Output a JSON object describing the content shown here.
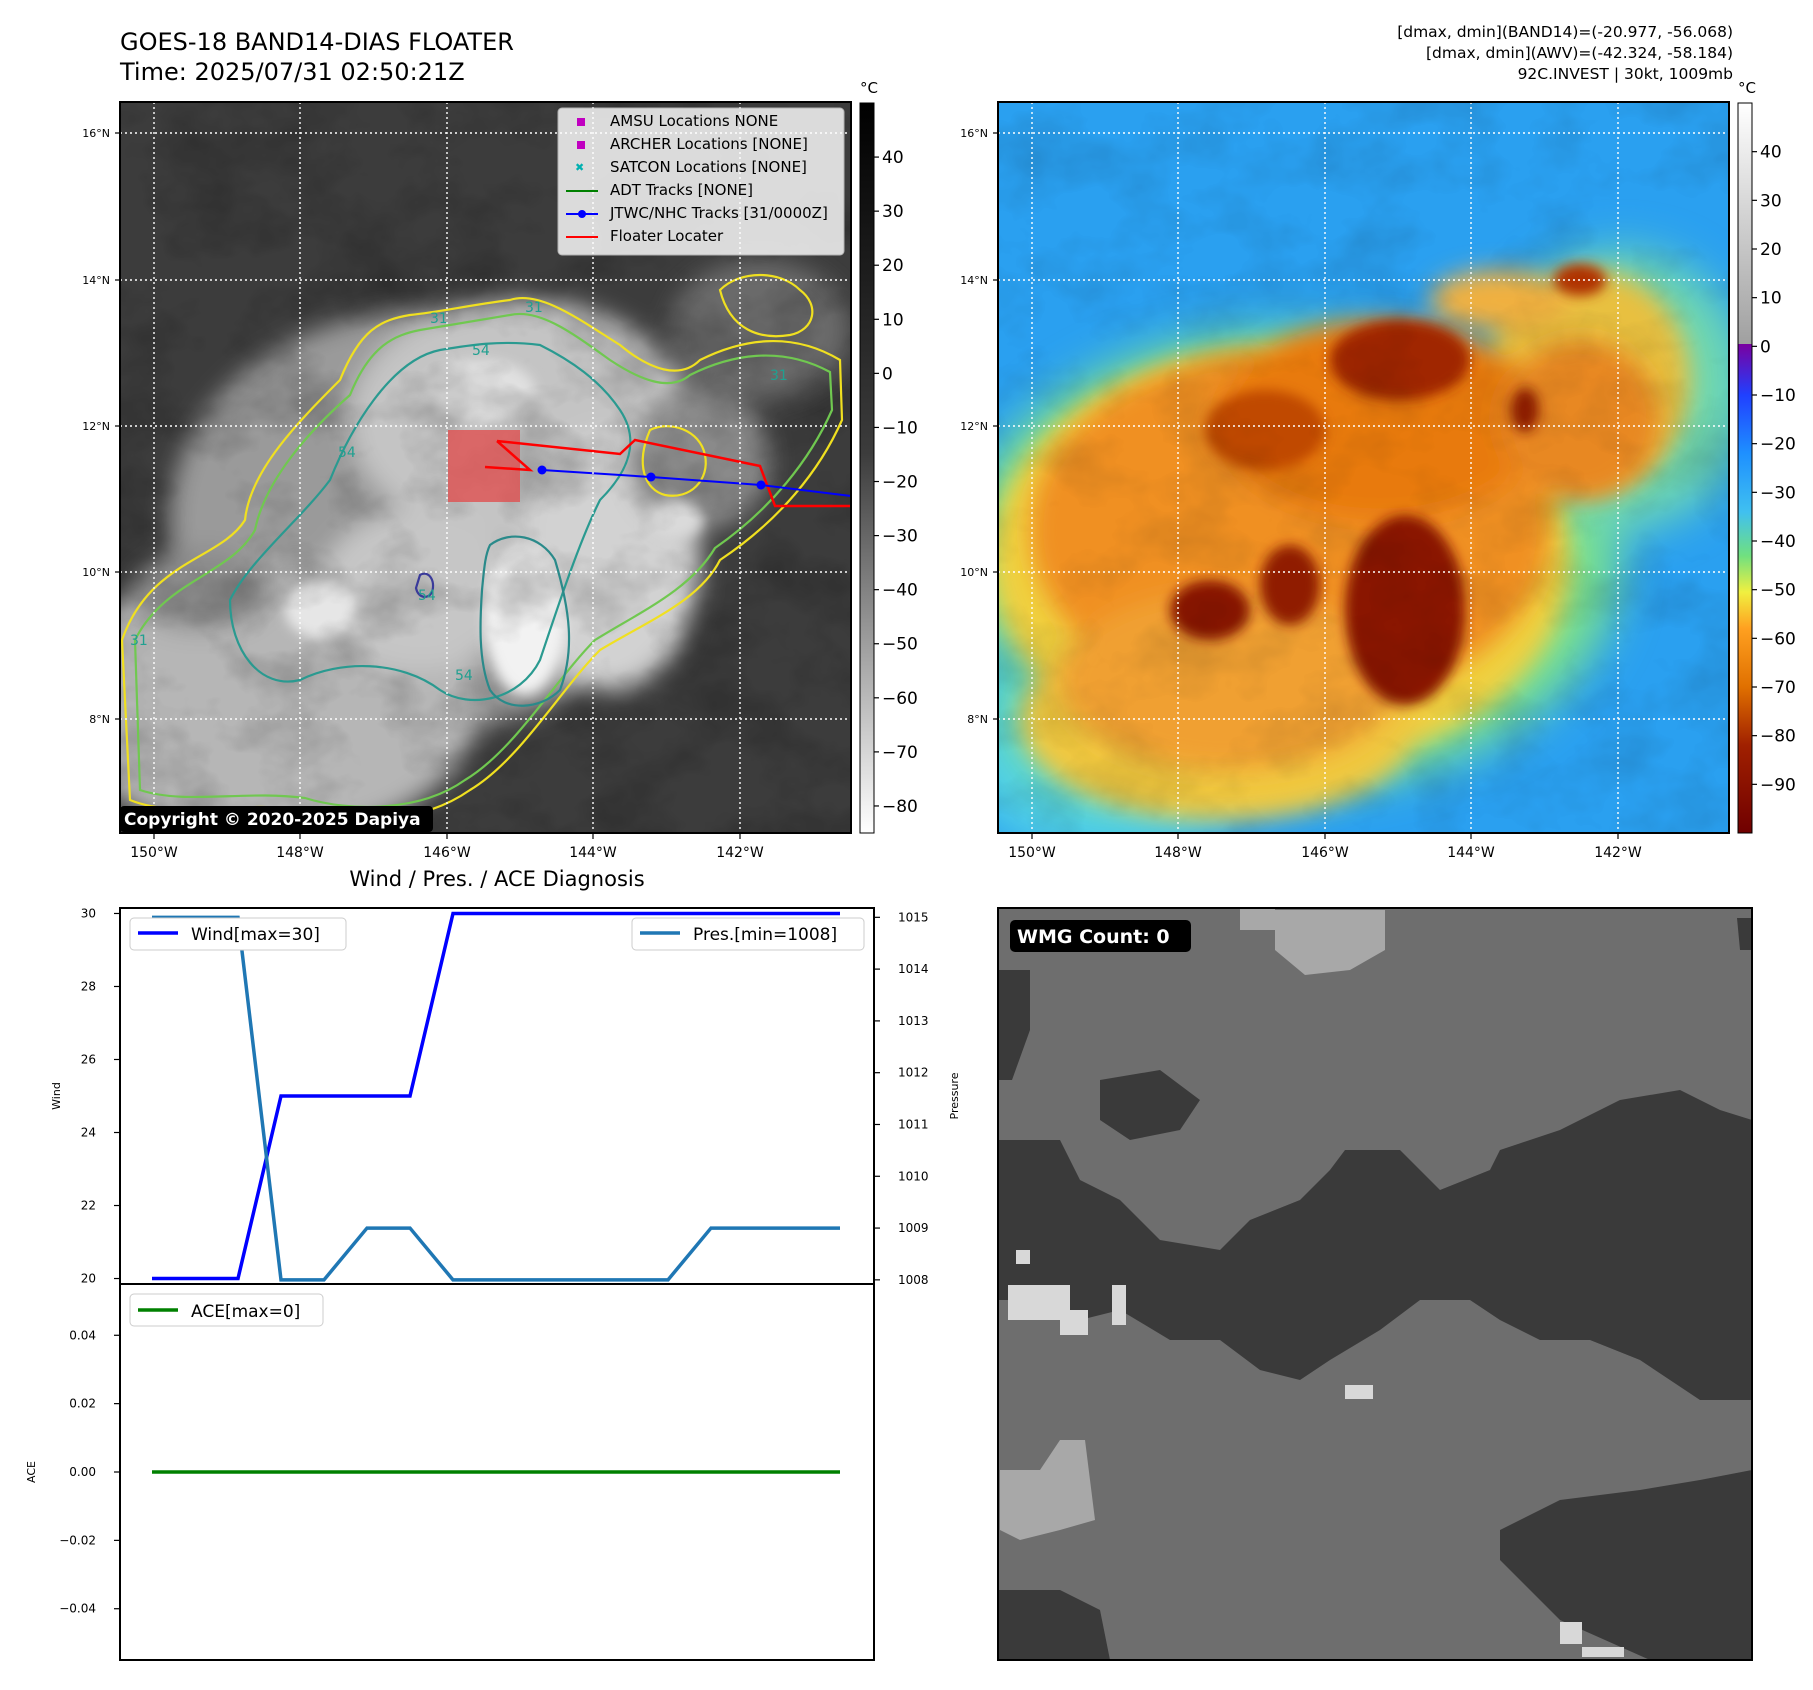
{
  "header": {
    "title_line1": "GOES-18 BAND14-DIAS FLOATER",
    "title_line2": "Time: 2025/07/31 02:50:21Z",
    "stats_line1": "[dmax, dmin](BAND14)=(-20.977, -56.068)",
    "stats_line2": "[dmax, dmin](AWV)=(-42.324, -58.184)",
    "stats_line3": "92C.INVEST | 30kt, 1009mb"
  },
  "map": {
    "lon_ticks": [
      "150°W",
      "148°W",
      "146°W",
      "144°W",
      "142°W"
    ],
    "lat_ticks": [
      "16°N",
      "14°N",
      "12°N",
      "10°N",
      "8°N"
    ],
    "copyright": "Copyright © 2020-2025 Dapiya",
    "contour_labels": [
      "31",
      "31",
      "54",
      "54",
      "54",
      "31",
      "31",
      "54"
    ]
  },
  "legend": {
    "items": [
      {
        "label": "AMSU Locations NONE",
        "marker": "square",
        "color": "#c000c0"
      },
      {
        "label": "ARCHER Locations [NONE]",
        "marker": "square",
        "color": "#c000c0"
      },
      {
        "label": "SATCON Locations [NONE]",
        "marker": "x",
        "color": "#00b0b0"
      },
      {
        "label": "ADT Tracks [NONE]",
        "marker": "line",
        "color": "#008000"
      },
      {
        "label": "JTWC/NHC Tracks [31/0000Z]",
        "marker": "line-dot",
        "color": "#0000ff"
      },
      {
        "label": "Floater Locater",
        "marker": "line",
        "color": "#ff0000"
      }
    ]
  },
  "colorbar_gray": {
    "unit": "°C",
    "ticks": [
      "40",
      "30",
      "20",
      "10",
      "0",
      "−10",
      "−20",
      "−30",
      "−40",
      "−50",
      "−60",
      "−70",
      "−80"
    ]
  },
  "colorbar_color": {
    "unit": "°C",
    "ticks": [
      "40",
      "30",
      "20",
      "10",
      "0",
      "−10",
      "−20",
      "−30",
      "−40",
      "−50",
      "−60",
      "−70",
      "−80",
      "−90"
    ]
  },
  "diag": {
    "title": "Wind / Pres. / ACE Diagnosis",
    "wind_ylabel": "Wind",
    "pres_ylabel": "Pressure",
    "ace_ylabel": "ACE",
    "wind_legend": "Wind[max=30]",
    "pres_legend": "Pres.[min=1008]",
    "ace_legend": "ACE[max=0]",
    "wind_ticks": [
      "30",
      "28",
      "26",
      "24",
      "22",
      "20"
    ],
    "pres_ticks": [
      "1015",
      "1014",
      "1013",
      "1012",
      "1011",
      "1010",
      "1009",
      "1008"
    ],
    "ace_ticks": [
      "0.04",
      "0.02",
      "0.00",
      "−0.02",
      "−0.04"
    ]
  },
  "wmg": {
    "label": "WMG Count: 0"
  },
  "chart_data": [
    {
      "type": "line",
      "title": "Wind / Pres. / ACE Diagnosis",
      "x": [
        0,
        1,
        2,
        3,
        4,
        5,
        6,
        7,
        8,
        9,
        10,
        11,
        12,
        13,
        14,
        15,
        16
      ],
      "series": [
        {
          "name": "Wind[max=30]",
          "axis": "left",
          "color": "#0000ff",
          "values": [
            20,
            20,
            20,
            25,
            25,
            25,
            25,
            30,
            30,
            30,
            30,
            30,
            30,
            30,
            30,
            30,
            30
          ]
        },
        {
          "name": "Pres.[min=1008]",
          "axis": "right",
          "color": "#1f77b4",
          "values": [
            1015,
            1015,
            1015,
            1008,
            1008,
            1009,
            1009,
            1008,
            1008,
            1008,
            1008,
            1008,
            1008,
            1009,
            1009,
            1009,
            1009
          ]
        }
      ],
      "ylabel": "Wind",
      "y2label": "Pressure",
      "ylim": [
        19.85,
        30.15
      ],
      "y2lim": [
        1007.92,
        1015.18
      ]
    },
    {
      "type": "line",
      "x": [
        0,
        1,
        2,
        3,
        4,
        5,
        6,
        7,
        8,
        9,
        10,
        11,
        12,
        13,
        14,
        15,
        16
      ],
      "series": [
        {
          "name": "ACE[max=0]",
          "color": "#008000",
          "values": [
            0,
            0,
            0,
            0,
            0,
            0,
            0,
            0,
            0,
            0,
            0,
            0,
            0,
            0,
            0,
            0,
            0
          ]
        }
      ],
      "ylabel": "ACE",
      "ylim": [
        -0.055,
        0.055
      ]
    }
  ]
}
